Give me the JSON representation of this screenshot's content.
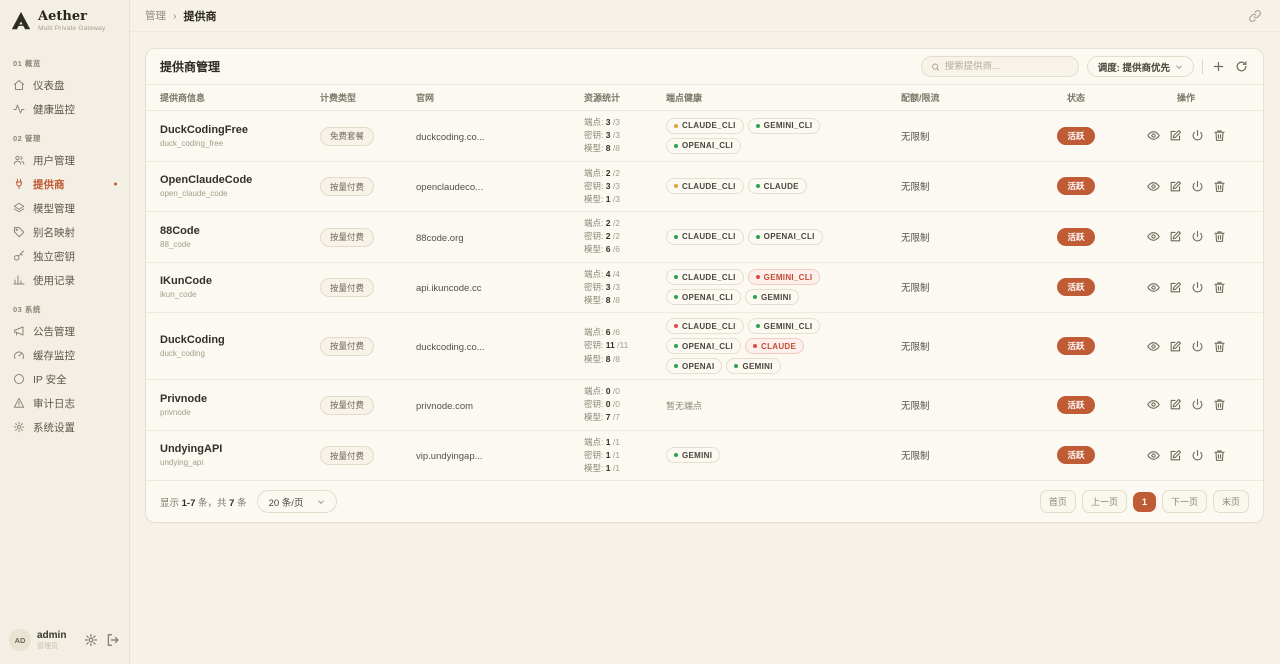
{
  "colors": {
    "accent": "#bf5b35",
    "green": "#2ca44e",
    "orange": "#e6a23c",
    "red": "#dd4f42",
    "bg": "#f6f2e9"
  },
  "app": {
    "name": "Aether",
    "tagline": "Multi Private Gateway"
  },
  "breadcrumb": {
    "parent": "管理",
    "separator": "›",
    "current": "提供商"
  },
  "sidebar": {
    "sections": [
      {
        "num": "01",
        "title": "概览",
        "items": [
          {
            "id": "dashboard",
            "icon": "home",
            "label": "仪表盘",
            "active": false
          },
          {
            "id": "health-monitor",
            "icon": "activity",
            "label": "健康监控",
            "active": false
          }
        ]
      },
      {
        "num": "02",
        "title": "管理",
        "items": [
          {
            "id": "user-management",
            "icon": "users",
            "label": "用户管理",
            "active": false
          },
          {
            "id": "providers",
            "icon": "plug",
            "label": "提供商",
            "active": true
          },
          {
            "id": "model-management",
            "icon": "layers",
            "label": "模型管理",
            "active": false
          },
          {
            "id": "alias-mapping",
            "icon": "tag",
            "label": "别名映射",
            "active": false
          },
          {
            "id": "standalone-keys",
            "icon": "key",
            "label": "独立密钥",
            "active": false
          },
          {
            "id": "usage-records",
            "icon": "chart",
            "label": "使用记录",
            "active": false
          }
        ]
      },
      {
        "num": "03",
        "title": "系统",
        "items": [
          {
            "id": "announcements",
            "icon": "megaphone",
            "label": "公告管理",
            "active": false
          },
          {
            "id": "cache-monitor",
            "icon": "gauge",
            "label": "缓存监控",
            "active": false
          },
          {
            "id": "ip-security",
            "icon": "globe",
            "label": "IP 安全",
            "active": false
          },
          {
            "id": "audit-logs",
            "icon": "alert",
            "label": "审计日志",
            "active": false
          },
          {
            "id": "system-settings",
            "icon": "gear",
            "label": "系统设置",
            "active": false
          }
        ]
      }
    ],
    "user": {
      "initials": "AD",
      "name": "admin",
      "role": "管理员"
    }
  },
  "card": {
    "title": "提供商管理",
    "search_placeholder": "搜索提供商...",
    "sort_label": "调度: 提供商优先"
  },
  "table": {
    "headers": [
      "提供商信息",
      "计费类型",
      "官网",
      "资源统计",
      "端点健康",
      "配额/限流",
      "状态",
      "操作"
    ],
    "empty_health": "暂无端点",
    "rows": [
      {
        "name": "DuckCodingFree",
        "code": "duck_coding_free",
        "billing": "免费套餐",
        "website": "duckcoding.co...",
        "stats": [
          {
            "label": "端点:",
            "value": "3",
            "cap": "/3"
          },
          {
            "label": "密钥:",
            "value": "3",
            "cap": "/3"
          },
          {
            "label": "模型:",
            "value": "8",
            "cap": "/8"
          }
        ],
        "health": [
          {
            "label": "CLAUDE_CLI",
            "dot": "orange"
          },
          {
            "label": "GEMINI_CLI",
            "dot": "green"
          },
          {
            "label": "OPENAI_CLI",
            "dot": "green"
          }
        ],
        "quota": "无限制",
        "status": "活跃"
      },
      {
        "name": "OpenClaudeCode",
        "code": "open_claude_code",
        "billing": "按量付费",
        "website": "openclaudeco...",
        "stats": [
          {
            "label": "端点:",
            "value": "2",
            "cap": "/2"
          },
          {
            "label": "密钥:",
            "value": "3",
            "cap": "/3"
          },
          {
            "label": "模型:",
            "value": "1",
            "cap": "/3"
          }
        ],
        "health": [
          {
            "label": "CLAUDE_CLI",
            "dot": "orange"
          },
          {
            "label": "CLAUDE",
            "dot": "green"
          }
        ],
        "quota": "无限制",
        "status": "活跃"
      },
      {
        "name": "88Code",
        "code": "88_code",
        "billing": "按量付费",
        "website": "88code.org",
        "stats": [
          {
            "label": "端点:",
            "value": "2",
            "cap": "/2"
          },
          {
            "label": "密钥:",
            "value": "2",
            "cap": "/2"
          },
          {
            "label": "模型:",
            "value": "6",
            "cap": "/6"
          }
        ],
        "health": [
          {
            "label": "CLAUDE_CLI",
            "dot": "green"
          },
          {
            "label": "OPENAI_CLI",
            "dot": "green"
          }
        ],
        "quota": "无限制",
        "status": "活跃"
      },
      {
        "name": "IKunCode",
        "code": "ikun_code",
        "billing": "按量付费",
        "website": "api.ikuncode.cc",
        "stats": [
          {
            "label": "端点:",
            "value": "4",
            "cap": "/4"
          },
          {
            "label": "密钥:",
            "value": "3",
            "cap": "/3"
          },
          {
            "label": "模型:",
            "value": "8",
            "cap": "/8"
          }
        ],
        "health": [
          {
            "label": "CLAUDE_CLI",
            "dot": "green"
          },
          {
            "label": "GEMINI_CLI",
            "dot": "red",
            "alert": true
          },
          {
            "label": "OPENAI_CLI",
            "dot": "green"
          },
          {
            "label": "GEMINI",
            "dot": "green"
          }
        ],
        "quota": "无限制",
        "status": "活跃"
      },
      {
        "name": "DuckCoding",
        "code": "duck_coding",
        "billing": "按量付费",
        "website": "duckcoding.co...",
        "stats": [
          {
            "label": "端点:",
            "value": "6",
            "cap": "/6"
          },
          {
            "label": "密钥:",
            "value": "11",
            "cap": "/11"
          },
          {
            "label": "模型:",
            "value": "8",
            "cap": "/8"
          }
        ],
        "health": [
          {
            "label": "CLAUDE_CLI",
            "dot": "red"
          },
          {
            "label": "GEMINI_CLI",
            "dot": "green"
          },
          {
            "label": "OPENAI_CLI",
            "dot": "green"
          },
          {
            "label": "CLAUDE",
            "dot": "red",
            "alert": true
          },
          {
            "label": "OPENAI",
            "dot": "green"
          },
          {
            "label": "GEMINI",
            "dot": "green"
          }
        ],
        "quota": "无限制",
        "status": "活跃"
      },
      {
        "name": "Privnode",
        "code": "privnode",
        "billing": "按量付费",
        "website": "privnode.com",
        "stats": [
          {
            "label": "端点:",
            "value": "0",
            "cap": "/0"
          },
          {
            "label": "密钥:",
            "value": "0",
            "cap": "/0"
          },
          {
            "label": "模型:",
            "value": "7",
            "cap": "/7"
          }
        ],
        "health": [],
        "quota": "无限制",
        "status": "活跃"
      },
      {
        "name": "UndyingAPI",
        "code": "undying_api",
        "billing": "按量付费",
        "website": "vip.undyingap...",
        "stats": [
          {
            "label": "端点:",
            "value": "1",
            "cap": "/1"
          },
          {
            "label": "密钥:",
            "value": "1",
            "cap": "/1"
          },
          {
            "label": "模型:",
            "value": "1",
            "cap": "/1"
          }
        ],
        "health": [
          {
            "label": "GEMINI",
            "dot": "green"
          }
        ],
        "quota": "无限制",
        "status": "活跃"
      }
    ]
  },
  "footer": {
    "summary": {
      "prefix": "显示 ",
      "range": "1-7",
      "mid": " 条，共 ",
      "total": "7",
      "suffix": " 条"
    },
    "page_size": "20 条/页",
    "pagination": [
      {
        "id": "first",
        "label": "首页",
        "active": false
      },
      {
        "id": "prev",
        "label": "上一页",
        "active": false
      },
      {
        "id": "page-1",
        "label": "1",
        "active": true
      },
      {
        "id": "next",
        "label": "下一页",
        "active": false
      },
      {
        "id": "last",
        "label": "末页",
        "active": false
      }
    ]
  }
}
